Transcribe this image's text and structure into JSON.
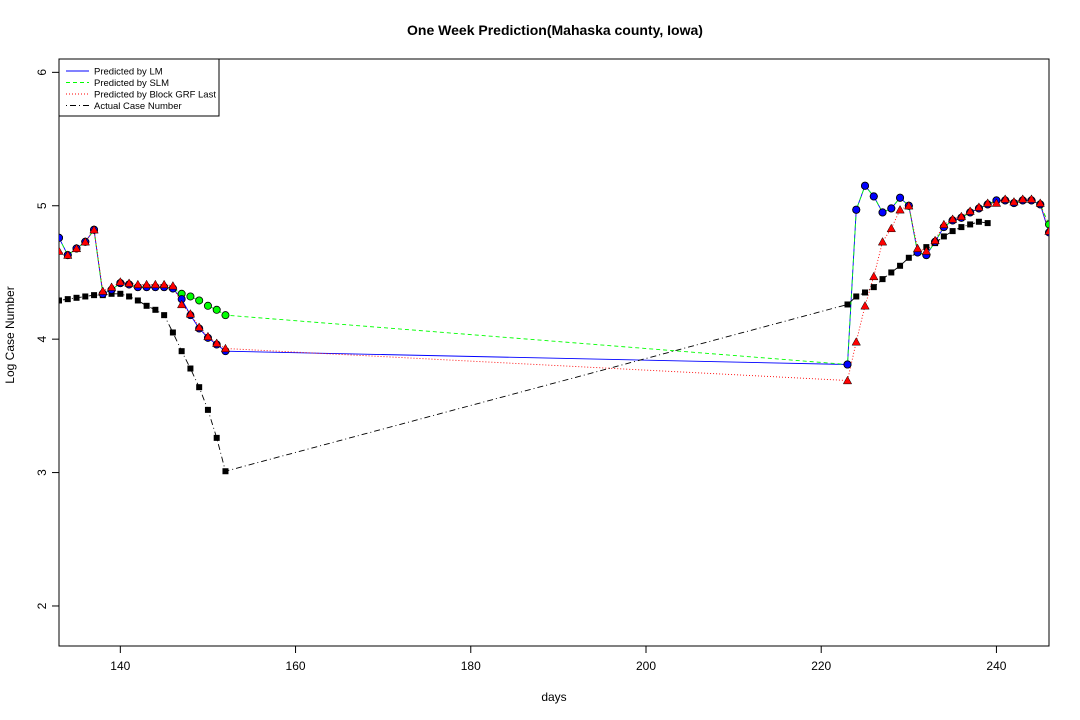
{
  "chart_data": {
    "type": "line",
    "title": "One Week Prediction(Mahaska county, Iowa)",
    "xlabel": "days",
    "ylabel": "Log Case Number",
    "xlim": [
      133,
      246
    ],
    "ylim": [
      1.7,
      6.1
    ],
    "x_ticks": [
      140,
      160,
      180,
      200,
      220,
      240
    ],
    "y_ticks": [
      2,
      3,
      4,
      5,
      6
    ],
    "grid": false,
    "legend_position": "top-left",
    "colors": {
      "lm": "#0000ff",
      "slm": "#00ff00",
      "grf": "#ff0000",
      "actual": "#000000"
    },
    "legend": [
      {
        "label": "Predicted by LM",
        "key": "lm"
      },
      {
        "label": "Predicted by SLM",
        "key": "slm"
      },
      {
        "label": "Predicted by Block GRF Last",
        "key": "grf"
      },
      {
        "label": "Actual Case Number",
        "key": "actual"
      }
    ],
    "series": [
      {
        "name": "Predicted by LM",
        "key": "lm",
        "line_style": "solid",
        "marker": "circle",
        "x": [
          133,
          134,
          135,
          136,
          137,
          138,
          139,
          140,
          141,
          142,
          143,
          144,
          145,
          146,
          147,
          148,
          149,
          150,
          151,
          152,
          223,
          224,
          225,
          226,
          227,
          228,
          229,
          230,
          231,
          232,
          233,
          234,
          235,
          236,
          237,
          238,
          239,
          240,
          241,
          242,
          243,
          244,
          245,
          246
        ],
        "y": [
          4.76,
          4.63,
          4.68,
          4.73,
          4.82,
          4.34,
          4.37,
          4.42,
          4.41,
          4.39,
          4.39,
          4.39,
          4.39,
          4.38,
          4.3,
          4.18,
          4.08,
          4.01,
          3.96,
          3.91,
          3.81,
          4.97,
          5.15,
          5.07,
          4.95,
          4.98,
          5.06,
          5.0,
          4.65,
          4.63,
          4.73,
          4.84,
          4.89,
          4.91,
          4.95,
          4.98,
          5.01,
          5.04,
          5.04,
          5.02,
          5.04,
          5.04,
          5.01,
          4.8
        ]
      },
      {
        "name": "Predicted by SLM",
        "key": "slm",
        "line_style": "dashed",
        "marker": "circle",
        "x": [
          133,
          134,
          135,
          136,
          137,
          138,
          139,
          140,
          141,
          142,
          143,
          144,
          145,
          146,
          147,
          148,
          149,
          150,
          151,
          152,
          223,
          224,
          225,
          226,
          227,
          228,
          229,
          230,
          231,
          232,
          233,
          234,
          235,
          236,
          237,
          238,
          239,
          240,
          241,
          242,
          243,
          244,
          245,
          246
        ],
        "y": [
          4.76,
          4.63,
          4.68,
          4.73,
          4.82,
          4.34,
          4.37,
          4.42,
          4.41,
          4.39,
          4.39,
          4.39,
          4.39,
          4.38,
          4.34,
          4.32,
          4.29,
          4.25,
          4.22,
          4.18,
          3.81,
          4.97,
          5.15,
          5.07,
          4.95,
          4.98,
          5.06,
          5.0,
          4.65,
          4.63,
          4.73,
          4.84,
          4.89,
          4.91,
          4.95,
          4.98,
          5.01,
          5.04,
          5.04,
          5.02,
          5.04,
          5.04,
          5.01,
          4.86
        ]
      },
      {
        "name": "Predicted by Block GRF Last",
        "key": "grf",
        "line_style": "dotted",
        "marker": "triangle",
        "x": [
          133,
          134,
          135,
          136,
          137,
          138,
          139,
          140,
          141,
          142,
          143,
          144,
          145,
          146,
          147,
          148,
          149,
          150,
          151,
          152,
          223,
          224,
          225,
          226,
          227,
          228,
          229,
          230,
          231,
          232,
          233,
          234,
          235,
          236,
          237,
          238,
          239,
          240,
          241,
          242,
          243,
          244,
          245,
          246
        ],
        "y": [
          4.66,
          4.63,
          4.68,
          4.73,
          4.82,
          4.36,
          4.39,
          4.43,
          4.42,
          4.41,
          4.41,
          4.41,
          4.41,
          4.4,
          4.26,
          4.19,
          4.09,
          4.02,
          3.97,
          3.93,
          3.69,
          3.98,
          4.25,
          4.47,
          4.73,
          4.83,
          4.97,
          5.0,
          4.68,
          4.66,
          4.74,
          4.86,
          4.9,
          4.92,
          4.96,
          4.99,
          5.02,
          5.02,
          5.05,
          5.03,
          5.05,
          5.05,
          5.02,
          4.81
        ]
      },
      {
        "name": "Actual Case Number",
        "key": "actual",
        "line_style": "dotdash",
        "marker": "square",
        "x": [
          133,
          134,
          135,
          136,
          137,
          138,
          139,
          140,
          141,
          142,
          143,
          144,
          145,
          146,
          147,
          148,
          149,
          150,
          151,
          152,
          223,
          224,
          225,
          226,
          227,
          228,
          229,
          230,
          231,
          232,
          233,
          234,
          235,
          236,
          237,
          238,
          239
        ],
        "y": [
          4.29,
          4.3,
          4.31,
          4.32,
          4.33,
          4.33,
          4.34,
          4.34,
          4.32,
          4.29,
          4.25,
          4.22,
          4.18,
          4.05,
          3.91,
          3.78,
          3.64,
          3.47,
          3.26,
          3.01,
          4.26,
          4.32,
          4.35,
          4.39,
          4.45,
          4.5,
          4.55,
          4.61,
          4.65,
          4.69,
          4.72,
          4.77,
          4.81,
          4.84,
          4.86,
          4.88,
          4.87
        ]
      }
    ]
  }
}
